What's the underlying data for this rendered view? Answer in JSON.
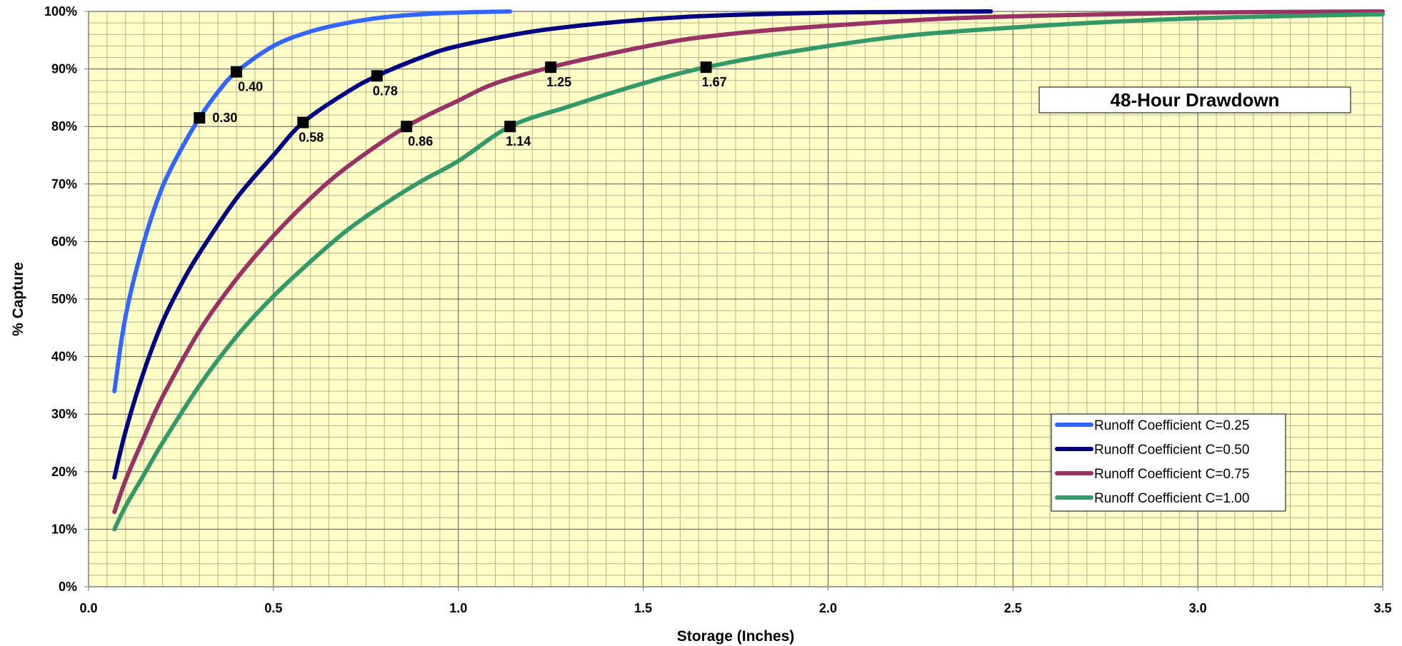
{
  "chart_data": {
    "type": "line",
    "title": "48-Hour Drawdown",
    "xlabel": "Storage (Inches)",
    "ylabel": "% Capture",
    "xlim": [
      0,
      3.5
    ],
    "ylim": [
      0,
      100
    ],
    "x_ticks": [
      "0.0",
      "0.5",
      "1.0",
      "1.5",
      "2.0",
      "2.5",
      "3.0",
      "3.5"
    ],
    "y_ticks": [
      "0%",
      "10%",
      "20%",
      "30%",
      "40%",
      "50%",
      "60%",
      "70%",
      "80%",
      "90%",
      "100%"
    ],
    "grid": true,
    "legend_position": "bottom-right",
    "title_position": "top-right",
    "plot_background": "#ffffc8",
    "series": [
      {
        "name": "Runoff Coefficient C=0.25",
        "color": "#3366ff",
        "x": [
          0.07,
          0.1,
          0.15,
          0.2,
          0.25,
          0.3,
          0.35,
          0.4,
          0.5,
          0.6,
          0.7,
          0.8,
          0.9,
          1.0,
          1.14
        ],
        "y": [
          34,
          47,
          60,
          69.5,
          76,
          81.5,
          86,
          89.5,
          94,
          96.5,
          98,
          99,
          99.5,
          99.8,
          100
        ]
      },
      {
        "name": "Runoff Coefficient C=0.50",
        "color": "#000080",
        "x": [
          0.07,
          0.1,
          0.15,
          0.2,
          0.25,
          0.3,
          0.4,
          0.5,
          0.58,
          0.7,
          0.78,
          0.9,
          1.0,
          1.2,
          1.4,
          1.6,
          1.8,
          2.0,
          2.2,
          2.44
        ],
        "y": [
          19,
          27,
          37.5,
          46,
          52.5,
          58,
          67.5,
          75,
          80.7,
          86,
          88.8,
          92,
          94,
          96.5,
          98,
          99,
          99.5,
          99.8,
          99.9,
          100
        ]
      },
      {
        "name": "Runoff Coefficient C=0.75",
        "color": "#993366",
        "x": [
          0.07,
          0.1,
          0.15,
          0.2,
          0.3,
          0.4,
          0.5,
          0.6,
          0.7,
          0.86,
          1.0,
          1.1,
          1.25,
          1.4,
          1.6,
          1.8,
          2.0,
          2.3,
          2.6,
          3.0,
          3.5
        ],
        "y": [
          13,
          18.5,
          26,
          33,
          44.5,
          53.5,
          61,
          67.5,
          73,
          80,
          84.5,
          87.5,
          90.3,
          92.5,
          95,
          96.5,
          97.5,
          98.7,
          99.3,
          99.8,
          100
        ]
      },
      {
        "name": "Runoff Coefficient C=1.00",
        "color": "#339966",
        "x": [
          0.07,
          0.1,
          0.15,
          0.2,
          0.3,
          0.4,
          0.5,
          0.6,
          0.7,
          0.8,
          0.9,
          1.0,
          1.14,
          1.3,
          1.5,
          1.67,
          1.9,
          2.2,
          2.5,
          2.8,
          3.1,
          3.5
        ],
        "y": [
          10,
          14,
          19.5,
          25,
          35,
          43.5,
          50.5,
          56.5,
          62,
          66.5,
          70.5,
          74,
          80,
          83.5,
          87.5,
          90.3,
          93,
          95.7,
          97.2,
          98.3,
          99,
          99.5
        ]
      }
    ],
    "markers": [
      {
        "x": 0.3,
        "y": 81.5,
        "label": "0.30",
        "label_side": "right"
      },
      {
        "x": 0.4,
        "y": 89.5,
        "label": "0.40",
        "label_side": "below-right"
      },
      {
        "x": 0.58,
        "y": 80.7,
        "label": "0.58",
        "label_side": "below"
      },
      {
        "x": 0.78,
        "y": 88.8,
        "label": "0.78",
        "label_side": "below"
      },
      {
        "x": 0.86,
        "y": 80.0,
        "label": "0.86",
        "label_side": "below-right"
      },
      {
        "x": 1.14,
        "y": 80.0,
        "label": "1.14",
        "label_side": "below"
      },
      {
        "x": 1.25,
        "y": 90.3,
        "label": "1.25",
        "label_side": "below"
      },
      {
        "x": 1.67,
        "y": 90.3,
        "label": "1.67",
        "label_side": "below"
      }
    ]
  }
}
